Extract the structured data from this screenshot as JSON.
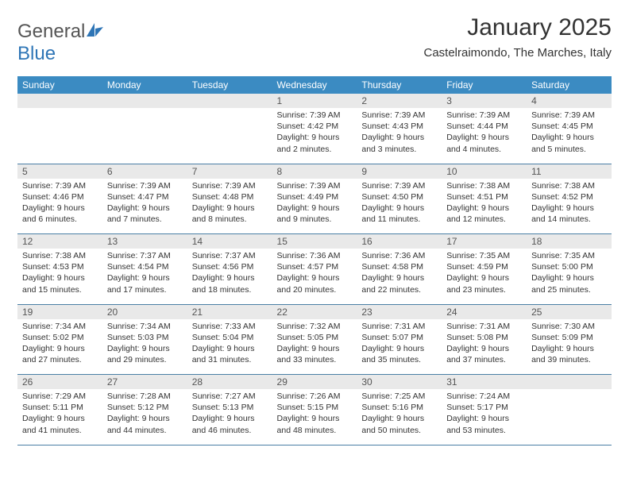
{
  "logo": {
    "text1": "General",
    "text2": "Blue"
  },
  "title": "January 2025",
  "location": "Castelraimondo, The Marches, Italy",
  "day_headers": [
    "Sunday",
    "Monday",
    "Tuesday",
    "Wednesday",
    "Thursday",
    "Friday",
    "Saturday"
  ],
  "colors": {
    "header_bg": "#3b8bc2",
    "header_text": "#ffffff",
    "daynum_bg": "#e9e9e9",
    "border": "#4a7fa5",
    "logo_gray": "#555555",
    "logo_blue": "#2e75b6"
  },
  "weeks": [
    [
      {
        "n": "",
        "sr": "",
        "ss": "",
        "dl": ""
      },
      {
        "n": "",
        "sr": "",
        "ss": "",
        "dl": ""
      },
      {
        "n": "",
        "sr": "",
        "ss": "",
        "dl": ""
      },
      {
        "n": "1",
        "sr": "7:39 AM",
        "ss": "4:42 PM",
        "dl": "9 hours and 2 minutes."
      },
      {
        "n": "2",
        "sr": "7:39 AM",
        "ss": "4:43 PM",
        "dl": "9 hours and 3 minutes."
      },
      {
        "n": "3",
        "sr": "7:39 AM",
        "ss": "4:44 PM",
        "dl": "9 hours and 4 minutes."
      },
      {
        "n": "4",
        "sr": "7:39 AM",
        "ss": "4:45 PM",
        "dl": "9 hours and 5 minutes."
      }
    ],
    [
      {
        "n": "5",
        "sr": "7:39 AM",
        "ss": "4:46 PM",
        "dl": "9 hours and 6 minutes."
      },
      {
        "n": "6",
        "sr": "7:39 AM",
        "ss": "4:47 PM",
        "dl": "9 hours and 7 minutes."
      },
      {
        "n": "7",
        "sr": "7:39 AM",
        "ss": "4:48 PM",
        "dl": "9 hours and 8 minutes."
      },
      {
        "n": "8",
        "sr": "7:39 AM",
        "ss": "4:49 PM",
        "dl": "9 hours and 9 minutes."
      },
      {
        "n": "9",
        "sr": "7:39 AM",
        "ss": "4:50 PM",
        "dl": "9 hours and 11 minutes."
      },
      {
        "n": "10",
        "sr": "7:38 AM",
        "ss": "4:51 PM",
        "dl": "9 hours and 12 minutes."
      },
      {
        "n": "11",
        "sr": "7:38 AM",
        "ss": "4:52 PM",
        "dl": "9 hours and 14 minutes."
      }
    ],
    [
      {
        "n": "12",
        "sr": "7:38 AM",
        "ss": "4:53 PM",
        "dl": "9 hours and 15 minutes."
      },
      {
        "n": "13",
        "sr": "7:37 AM",
        "ss": "4:54 PM",
        "dl": "9 hours and 17 minutes."
      },
      {
        "n": "14",
        "sr": "7:37 AM",
        "ss": "4:56 PM",
        "dl": "9 hours and 18 minutes."
      },
      {
        "n": "15",
        "sr": "7:36 AM",
        "ss": "4:57 PM",
        "dl": "9 hours and 20 minutes."
      },
      {
        "n": "16",
        "sr": "7:36 AM",
        "ss": "4:58 PM",
        "dl": "9 hours and 22 minutes."
      },
      {
        "n": "17",
        "sr": "7:35 AM",
        "ss": "4:59 PM",
        "dl": "9 hours and 23 minutes."
      },
      {
        "n": "18",
        "sr": "7:35 AM",
        "ss": "5:00 PM",
        "dl": "9 hours and 25 minutes."
      }
    ],
    [
      {
        "n": "19",
        "sr": "7:34 AM",
        "ss": "5:02 PM",
        "dl": "9 hours and 27 minutes."
      },
      {
        "n": "20",
        "sr": "7:34 AM",
        "ss": "5:03 PM",
        "dl": "9 hours and 29 minutes."
      },
      {
        "n": "21",
        "sr": "7:33 AM",
        "ss": "5:04 PM",
        "dl": "9 hours and 31 minutes."
      },
      {
        "n": "22",
        "sr": "7:32 AM",
        "ss": "5:05 PM",
        "dl": "9 hours and 33 minutes."
      },
      {
        "n": "23",
        "sr": "7:31 AM",
        "ss": "5:07 PM",
        "dl": "9 hours and 35 minutes."
      },
      {
        "n": "24",
        "sr": "7:31 AM",
        "ss": "5:08 PM",
        "dl": "9 hours and 37 minutes."
      },
      {
        "n": "25",
        "sr": "7:30 AM",
        "ss": "5:09 PM",
        "dl": "9 hours and 39 minutes."
      }
    ],
    [
      {
        "n": "26",
        "sr": "7:29 AM",
        "ss": "5:11 PM",
        "dl": "9 hours and 41 minutes."
      },
      {
        "n": "27",
        "sr": "7:28 AM",
        "ss": "5:12 PM",
        "dl": "9 hours and 44 minutes."
      },
      {
        "n": "28",
        "sr": "7:27 AM",
        "ss": "5:13 PM",
        "dl": "9 hours and 46 minutes."
      },
      {
        "n": "29",
        "sr": "7:26 AM",
        "ss": "5:15 PM",
        "dl": "9 hours and 48 minutes."
      },
      {
        "n": "30",
        "sr": "7:25 AM",
        "ss": "5:16 PM",
        "dl": "9 hours and 50 minutes."
      },
      {
        "n": "31",
        "sr": "7:24 AM",
        "ss": "5:17 PM",
        "dl": "9 hours and 53 minutes."
      },
      {
        "n": "",
        "sr": "",
        "ss": "",
        "dl": ""
      }
    ]
  ]
}
